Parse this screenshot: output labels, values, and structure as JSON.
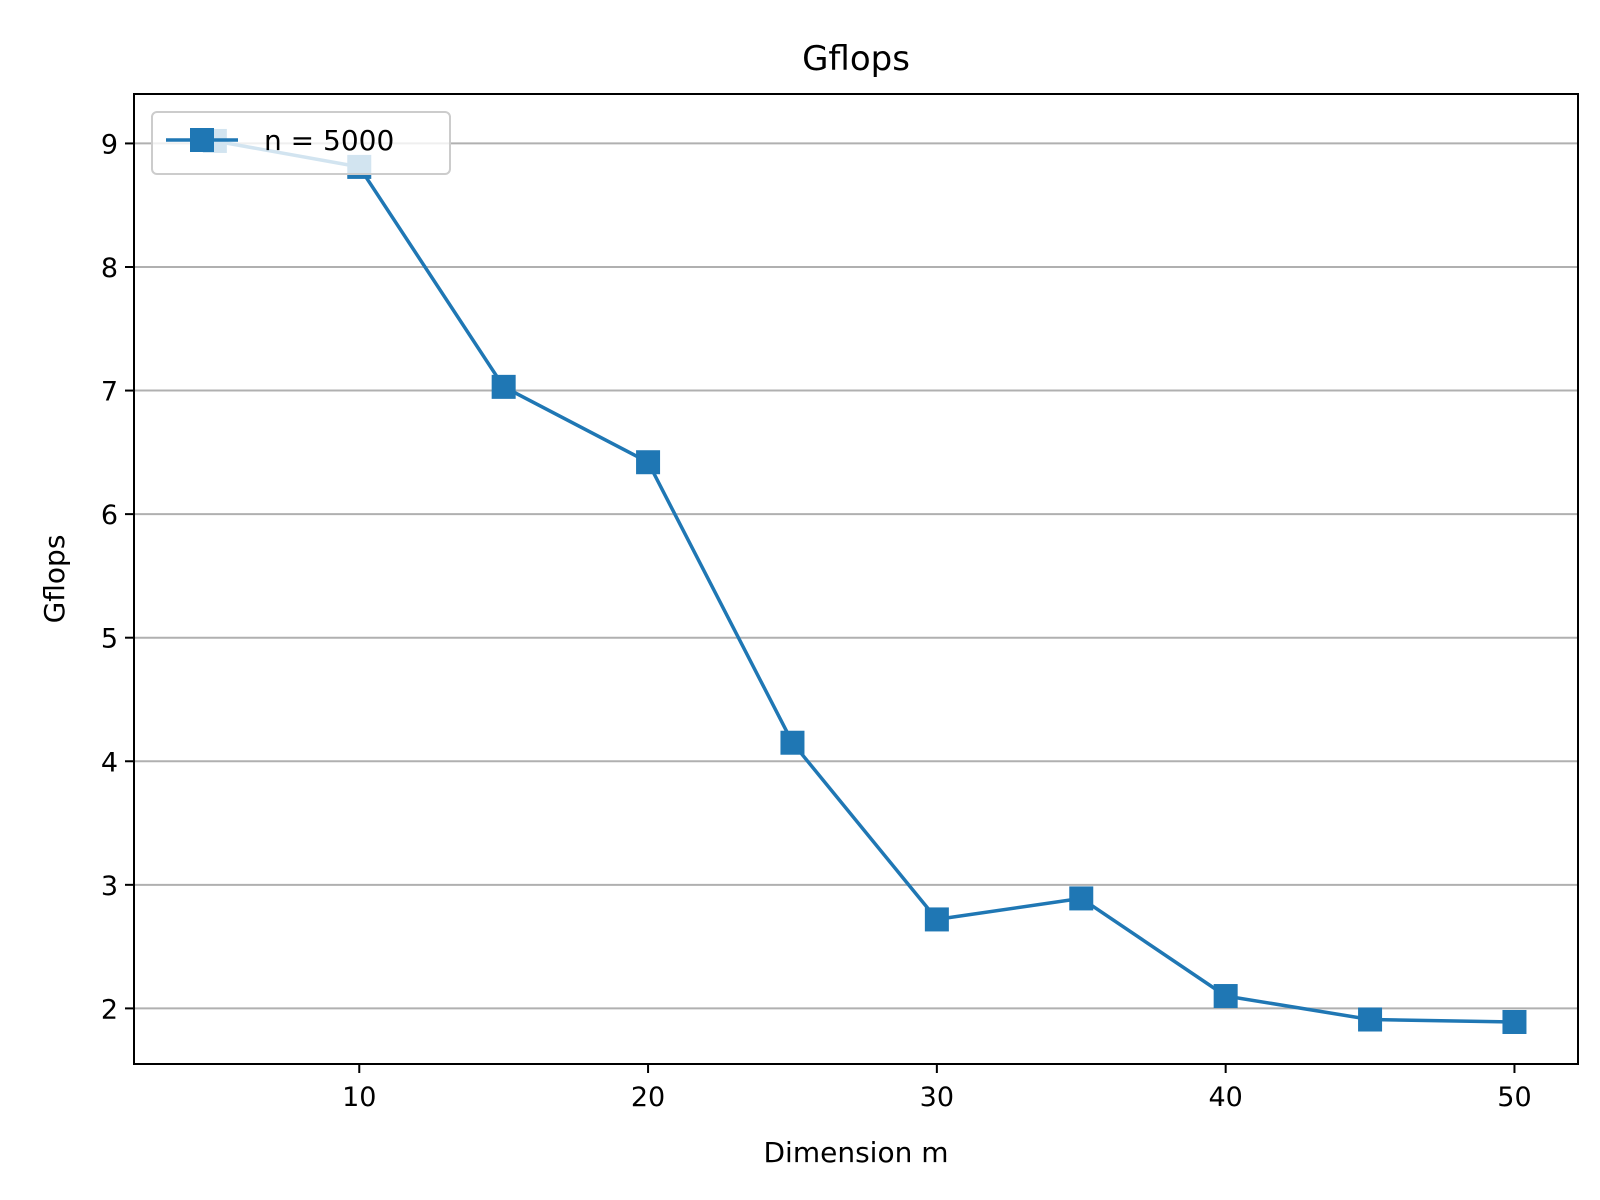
{
  "chart_data": {
    "type": "line",
    "title": "Gflops",
    "xlabel": "Dimension m",
    "ylabel": "Gflops",
    "x": [
      5,
      10,
      15,
      20,
      25,
      30,
      35,
      40,
      45,
      50
    ],
    "series": [
      {
        "name": "n = 5000",
        "values": [
          9.02,
          8.81,
          7.03,
          6.42,
          4.15,
          2.72,
          2.89,
          2.1,
          1.91,
          1.89
        ],
        "color": "#1f77b4",
        "marker": "square"
      }
    ],
    "xlim": [
      2.2,
      52.2
    ],
    "ylim": [
      1.55,
      9.4
    ],
    "xticks": [
      10,
      20,
      30,
      40,
      50
    ],
    "yticks": [
      2,
      3,
      4,
      5,
      6,
      7,
      8,
      9
    ],
    "grid": "y",
    "legend": "top-left"
  }
}
